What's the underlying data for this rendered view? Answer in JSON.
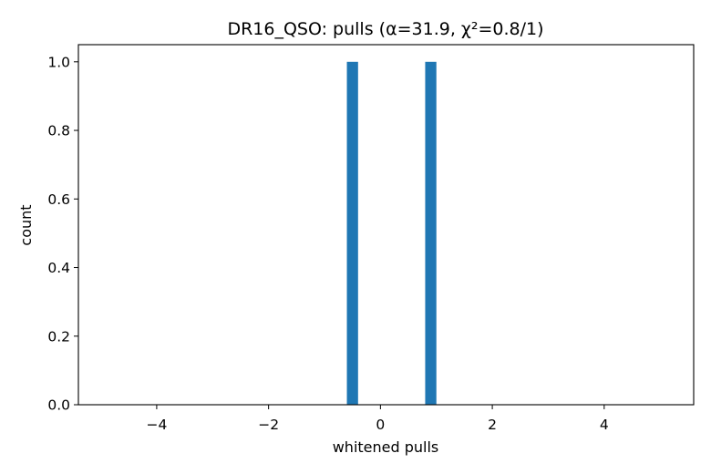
{
  "chart_data": {
    "type": "bar",
    "title": "DR16_QSO: pulls (α=31.9, χ²=0.8/1)",
    "xlabel": "whitened pulls",
    "ylabel": "count",
    "xlim": [
      -5.4,
      5.6
    ],
    "ylim": [
      0,
      1.05
    ],
    "xticks": [
      -4,
      -2,
      0,
      2,
      4
    ],
    "xtick_labels": [
      "−4",
      "−2",
      "0",
      "2",
      "4"
    ],
    "yticks": [
      0.0,
      0.2,
      0.4,
      0.6,
      0.8,
      1.0
    ],
    "ytick_labels": [
      "0.0",
      "0.2",
      "0.4",
      "0.6",
      "0.8",
      "1.0"
    ],
    "grid": false,
    "bin_width": 0.2,
    "bars": [
      {
        "x_left": -0.6,
        "x_right": -0.4,
        "count": 1
      },
      {
        "x_left": 0.8,
        "x_right": 1.0,
        "count": 1
      }
    ],
    "bar_color": "#1f77b4"
  }
}
